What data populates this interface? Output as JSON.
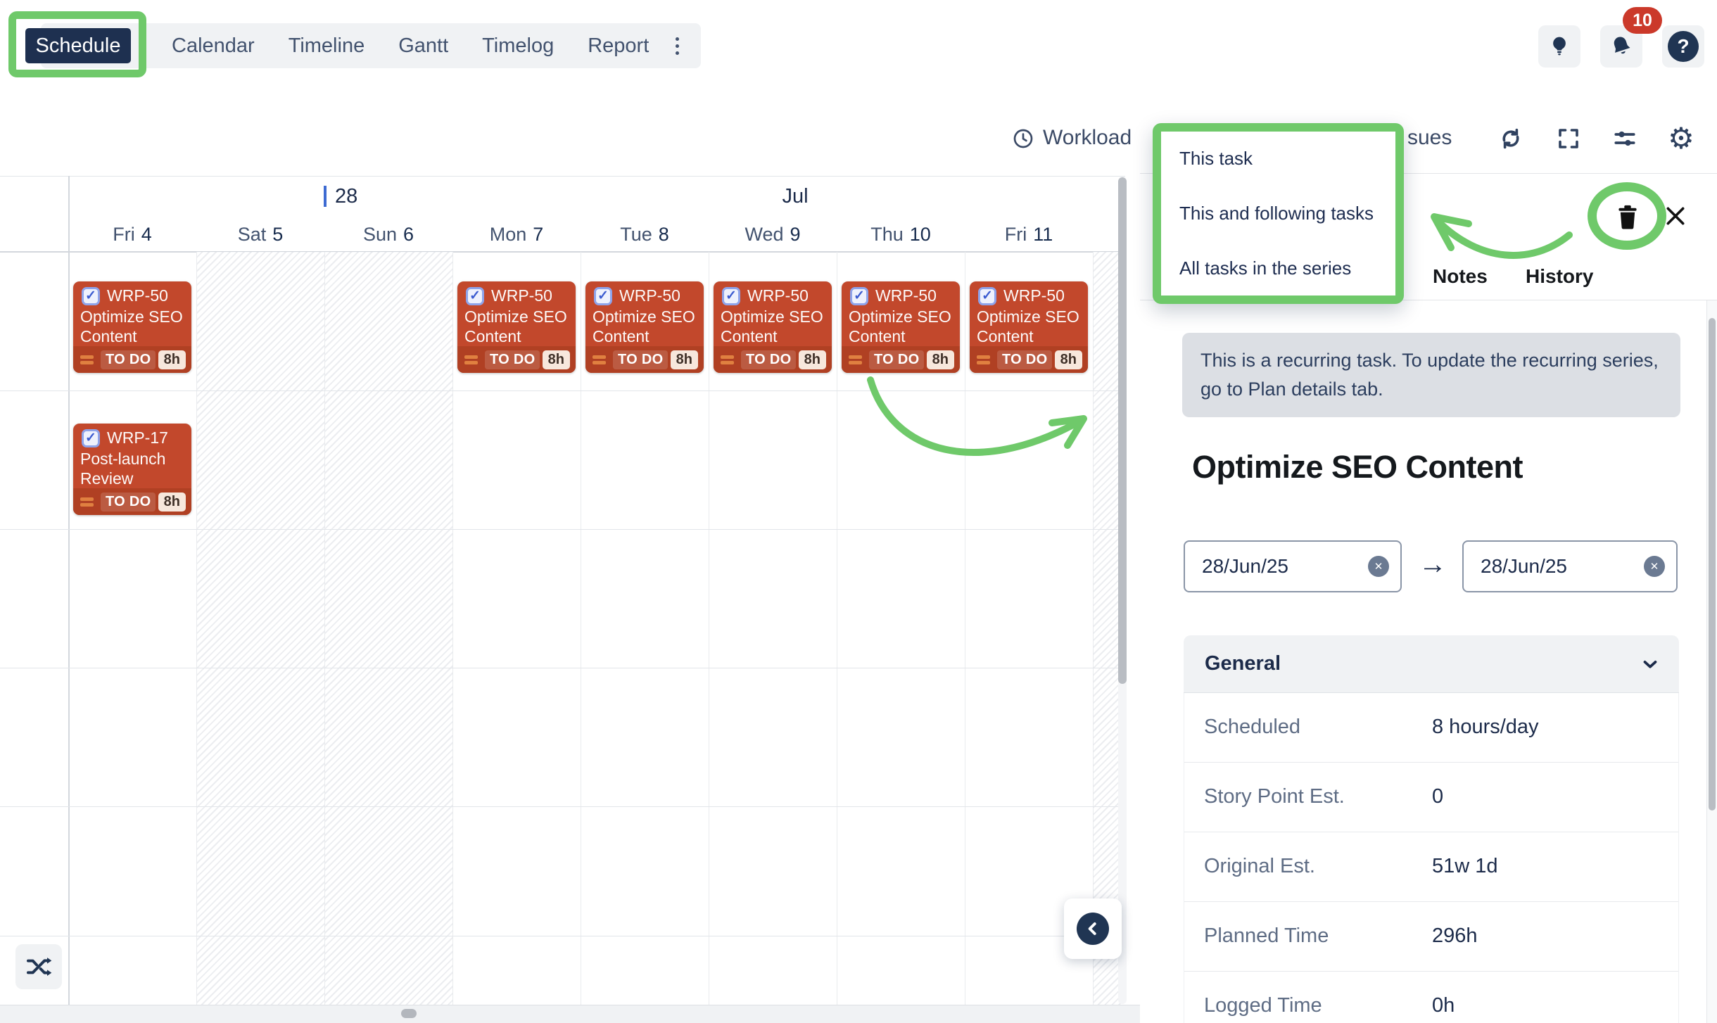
{
  "nav": {
    "tabs": [
      "Schedule",
      "Calendar",
      "Timeline",
      "Gantt",
      "Timelog",
      "Report"
    ],
    "active_tab": "Schedule"
  },
  "header": {
    "notification_count": "10"
  },
  "toolbar": {
    "workload_label": "Workload",
    "issues_label_fragment": "sues"
  },
  "context_menu": {
    "items": [
      "This task",
      "This and following tasks",
      "All tasks in the series"
    ]
  },
  "calendar": {
    "week_number": "28",
    "month_label": "Jul",
    "days": [
      {
        "weekday": "Fri",
        "day": "4",
        "weekend": false
      },
      {
        "weekday": "Sat",
        "day": "5",
        "weekend": true
      },
      {
        "weekday": "Sun",
        "day": "6",
        "weekend": true
      },
      {
        "weekday": "Mon",
        "day": "7",
        "weekend": false
      },
      {
        "weekday": "Tue",
        "day": "8",
        "weekend": false
      },
      {
        "weekday": "Wed",
        "day": "9",
        "weekend": false
      },
      {
        "weekday": "Thu",
        "day": "10",
        "weekend": false
      },
      {
        "weekday": "Fri",
        "day": "11",
        "weekend": false
      }
    ],
    "tasks": [
      {
        "key": "WRP-50",
        "title": "Optimize SEO Content",
        "status": "TO DO",
        "estimate": "8h",
        "day_index": 0,
        "row": 0
      },
      {
        "key": "WRP-50",
        "title": "Optimize SEO Content",
        "status": "TO DO",
        "estimate": "8h",
        "day_index": 3,
        "row": 0
      },
      {
        "key": "WRP-50",
        "title": "Optimize SEO Content",
        "status": "TO DO",
        "estimate": "8h",
        "day_index": 4,
        "row": 0
      },
      {
        "key": "WRP-50",
        "title": "Optimize SEO Content",
        "status": "TO DO",
        "estimate": "8h",
        "day_index": 5,
        "row": 0
      },
      {
        "key": "WRP-50",
        "title": "Optimize SEO Content",
        "status": "TO DO",
        "estimate": "8h",
        "day_index": 6,
        "row": 0
      },
      {
        "key": "WRP-50",
        "title": "Optimize SEO Content",
        "status": "TO DO",
        "estimate": "8h",
        "day_index": 7,
        "row": 0
      },
      {
        "key": "WRP-17",
        "title": "Post-launch Review",
        "status": "TO DO",
        "estimate": "8h",
        "day_index": 0,
        "row": 1
      }
    ]
  },
  "panel": {
    "tabs": [
      "Notes",
      "History"
    ],
    "banner_text": "This is a recurring task. To update the recurring series, go to Plan details tab.",
    "title": "Optimize SEO Content",
    "date_from": "28/Jun/25",
    "date_to": "28/Jun/25",
    "section_title": "General",
    "fields": [
      {
        "label": "Scheduled",
        "value": "8 hours/day"
      },
      {
        "label": "Story Point Est.",
        "value": "0"
      },
      {
        "label": "Original Est.",
        "value": "51w 1d"
      },
      {
        "label": "Planned Time",
        "value": "296h"
      },
      {
        "label": "Logged Time",
        "value": "0h"
      }
    ]
  },
  "icons": {
    "date_clear": "✕",
    "date_arrow": "→",
    "task_check": "✓",
    "help": "?",
    "gear": "⚙"
  },
  "colors": {
    "accent_green": "#6fc96a",
    "card_red": "#c2482c",
    "card_footer_red": "#b04023",
    "navy": "#1c2b4a",
    "badge_red": "#cb392a"
  }
}
